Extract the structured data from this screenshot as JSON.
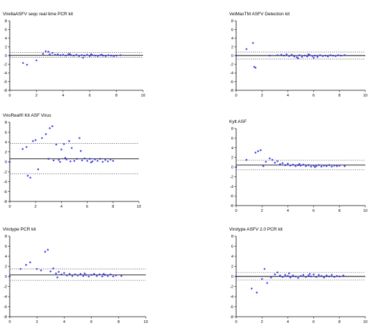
{
  "colors": {
    "points": "#2b2bea",
    "axis": "#000000",
    "mean_line": "#000000",
    "limit_line": "#555555"
  },
  "chart_data": [
    {
      "type": "scatter",
      "title": "VirellaASFV seqc real time PCR kit",
      "xlabel": "",
      "ylabel": "",
      "xlim": [
        0,
        10
      ],
      "ylim": [
        -8,
        8
      ],
      "xticks": [
        "0",
        "2",
        "4",
        "6",
        "8",
        "10"
      ],
      "yticks": [
        "-8",
        "-6",
        "-4",
        "-2",
        "0",
        "2",
        "4",
        "6",
        "8"
      ],
      "mean": 0.05,
      "upper_limit": 0.7,
      "lower_limit": -0.4,
      "series": [
        {
          "points": [
            [
              0,
              0
            ],
            [
              1.0,
              -1.7
            ],
            [
              1.3,
              -2.1
            ],
            [
              2.0,
              -1.1
            ],
            [
              2.5,
              0.4
            ],
            [
              2.7,
              1.0
            ],
            [
              2.9,
              0.9
            ],
            [
              3.0,
              0.3
            ],
            [
              3.2,
              0.6
            ],
            [
              3.4,
              0.2
            ],
            [
              3.6,
              0.3
            ],
            [
              3.8,
              0.1
            ],
            [
              4.0,
              0.2
            ],
            [
              4.2,
              0.0
            ],
            [
              4.4,
              0.3
            ],
            [
              4.6,
              0.1
            ],
            [
              4.8,
              0.0
            ],
            [
              5.0,
              0.2
            ],
            [
              5.2,
              -0.1
            ],
            [
              5.4,
              0.1
            ],
            [
              5.6,
              0.0
            ],
            [
              5.8,
              0.2
            ],
            [
              6.0,
              -0.1
            ],
            [
              6.2,
              0.1
            ],
            [
              6.4,
              0.0
            ],
            [
              6.6,
              -0.1
            ],
            [
              6.8,
              0.1
            ],
            [
              7.0,
              0.0
            ],
            [
              7.2,
              -0.1
            ],
            [
              7.4,
              0.1
            ],
            [
              7.6,
              0.0
            ],
            [
              7.8,
              -0.1
            ],
            [
              8.0,
              0.0
            ],
            [
              8.3,
              0.1
            ],
            [
              5.5,
              -0.5
            ],
            [
              6.1,
              0.3
            ],
            [
              6.9,
              0.2
            ],
            [
              4.5,
              0.4
            ]
          ]
        }
      ]
    },
    {
      "type": "scatter",
      "title": "VetMaxTM ASFV Detection kit",
      "xlabel": "",
      "ylabel": "",
      "xlim": [
        0,
        10
      ],
      "ylim": [
        -8,
        8
      ],
      "xticks": [
        "0",
        "2",
        "4",
        "6",
        "8",
        "10"
      ],
      "yticks": [
        "-8",
        "-6",
        "-4",
        "-2",
        "0",
        "2",
        "4",
        "6",
        "8"
      ],
      "mean": 0.0,
      "upper_limit": 0.8,
      "lower_limit": -0.8,
      "series": [
        {
          "points": [
            [
              0,
              0
            ],
            [
              0.8,
              1.5
            ],
            [
              1.3,
              2.9
            ],
            [
              1.4,
              -2.6
            ],
            [
              1.5,
              -2.8
            ],
            [
              2.6,
              0.0
            ],
            [
              3.2,
              0.1
            ],
            [
              3.5,
              0.2
            ],
            [
              3.7,
              0.0
            ],
            [
              3.9,
              0.3
            ],
            [
              4.1,
              -0.1
            ],
            [
              4.3,
              0.2
            ],
            [
              4.5,
              -0.2
            ],
            [
              4.7,
              -0.4
            ],
            [
              4.9,
              0.1
            ],
            [
              5.1,
              -0.3
            ],
            [
              5.3,
              0.0
            ],
            [
              5.5,
              -0.2
            ],
            [
              5.7,
              0.1
            ],
            [
              5.9,
              -0.1
            ],
            [
              6.1,
              0.0
            ],
            [
              6.3,
              -0.3
            ],
            [
              6.5,
              0.1
            ],
            [
              6.7,
              -0.1
            ],
            [
              6.9,
              0.0
            ],
            [
              7.1,
              -0.2
            ],
            [
              7.3,
              0.1
            ],
            [
              7.5,
              0.0
            ],
            [
              7.7,
              -0.1
            ],
            [
              7.9,
              0.1
            ],
            [
              8.1,
              0.0
            ],
            [
              8.4,
              0.1
            ],
            [
              4.8,
              -0.6
            ],
            [
              6.0,
              -0.5
            ],
            [
              5.6,
              0.3
            ]
          ]
        }
      ]
    },
    {
      "type": "scatter",
      "title": "ViroReal® Kit ASF Virus",
      "xlabel": "",
      "ylabel": "",
      "xlim": [
        0,
        10
      ],
      "ylim": [
        -8,
        8
      ],
      "xticks": [
        "0",
        "2",
        "4",
        "6",
        "8",
        "10"
      ],
      "yticks": [
        "-8",
        "-6",
        "-4",
        "-2",
        "0",
        "2",
        "4",
        "6",
        "8"
      ],
      "mean": 0.6,
      "upper_limit": 3.7,
      "lower_limit": -2.4,
      "series": [
        {
          "points": [
            [
              0,
              0
            ],
            [
              1.0,
              2.6
            ],
            [
              1.3,
              3.0
            ],
            [
              1.4,
              -2.8
            ],
            [
              1.6,
              -3.2
            ],
            [
              1.8,
              4.2
            ],
            [
              2.0,
              4.4
            ],
            [
              2.2,
              -1.5
            ],
            [
              2.5,
              4.8
            ],
            [
              2.8,
              5.6
            ],
            [
              3.1,
              6.8
            ],
            [
              3.3,
              7.2
            ],
            [
              3.0,
              0.6
            ],
            [
              3.4,
              0.3
            ],
            [
              3.6,
              3.5
            ],
            [
              3.8,
              0.4
            ],
            [
              4.0,
              2.5
            ],
            [
              4.2,
              3.6
            ],
            [
              4.4,
              0.5
            ],
            [
              4.6,
              4.2
            ],
            [
              4.8,
              2.8
            ],
            [
              5.0,
              0.2
            ],
            [
              5.2,
              0.6
            ],
            [
              5.4,
              4.8
            ],
            [
              5.6,
              0.3
            ],
            [
              5.8,
              0.7
            ],
            [
              6.0,
              0.2
            ],
            [
              6.2,
              0.6
            ],
            [
              6.4,
              0.1
            ],
            [
              6.6,
              0.5
            ],
            [
              6.8,
              0.2
            ],
            [
              7.0,
              0.6
            ],
            [
              7.2,
              0.0
            ],
            [
              7.4,
              0.4
            ],
            [
              7.6,
              0.1
            ],
            [
              7.8,
              0.5
            ],
            [
              8.0,
              0.2
            ],
            [
              3.9,
              0.0
            ],
            [
              4.7,
              0.1
            ],
            [
              5.5,
              2.2
            ],
            [
              6.3,
              -0.1
            ],
            [
              4.3,
              0.8
            ]
          ]
        }
      ]
    },
    {
      "type": "scatter",
      "title": "Kylt ASF",
      "xlabel": "",
      "ylabel": "",
      "xlim": [
        0,
        10
      ],
      "ylim": [
        -8,
        8
      ],
      "xticks": [
        "0",
        "2",
        "4",
        "6",
        "8",
        "10"
      ],
      "yticks": [
        "-8",
        "-6",
        "-4",
        "-2",
        "0",
        "2",
        "4",
        "6",
        "8"
      ],
      "mean": 0.4,
      "upper_limit": 1.4,
      "lower_limit": -0.6,
      "series": [
        {
          "points": [
            [
              0,
              0
            ],
            [
              0.8,
              1.5
            ],
            [
              1.5,
              3.0
            ],
            [
              1.7,
              3.3
            ],
            [
              1.9,
              3.5
            ],
            [
              2.3,
              1.1
            ],
            [
              2.6,
              1.8
            ],
            [
              2.8,
              1.5
            ],
            [
              3.0,
              0.9
            ],
            [
              3.2,
              1.2
            ],
            [
              3.4,
              0.6
            ],
            [
              3.6,
              0.8
            ],
            [
              3.8,
              0.4
            ],
            [
              4.0,
              0.7
            ],
            [
              4.2,
              0.3
            ],
            [
              4.4,
              0.5
            ],
            [
              4.6,
              0.2
            ],
            [
              4.8,
              0.4
            ],
            [
              5.0,
              0.3
            ],
            [
              5.2,
              0.5
            ],
            [
              5.4,
              0.2
            ],
            [
              5.6,
              0.4
            ],
            [
              5.8,
              0.1
            ],
            [
              6.0,
              0.3
            ],
            [
              6.2,
              0.2
            ],
            [
              6.4,
              0.4
            ],
            [
              6.6,
              0.1
            ],
            [
              6.8,
              0.3
            ],
            [
              7.0,
              0.2
            ],
            [
              7.2,
              0.4
            ],
            [
              7.4,
              0.1
            ],
            [
              7.6,
              0.3
            ],
            [
              7.8,
              0.2
            ],
            [
              8.0,
              0.3
            ],
            [
              8.4,
              0.2
            ],
            [
              2.1,
              0.2
            ],
            [
              4.9,
              0.6
            ],
            [
              6.1,
              0.0
            ]
          ]
        }
      ]
    },
    {
      "type": "scatter",
      "title": "Virotype PCR kit",
      "xlabel": "",
      "ylabel": "",
      "xlim": [
        0,
        10
      ],
      "ylim": [
        -8,
        8
      ],
      "xticks": [
        "0",
        "2",
        "4",
        "6",
        "8",
        "10"
      ],
      "yticks": [
        "-8",
        "-6",
        "-4",
        "-2",
        "0",
        "2",
        "4",
        "6",
        "8"
      ],
      "mean": 0.3,
      "upper_limit": 1.5,
      "lower_limit": -0.8,
      "series": [
        {
          "points": [
            [
              0,
              0
            ],
            [
              0.8,
              1.5
            ],
            [
              1.2,
              2.3
            ],
            [
              1.5,
              2.8
            ],
            [
              2.0,
              1.5
            ],
            [
              2.3,
              1.2
            ],
            [
              2.6,
              4.9
            ],
            [
              2.8,
              5.3
            ],
            [
              3.0,
              1.0
            ],
            [
              3.2,
              1.6
            ],
            [
              3.4,
              0.6
            ],
            [
              3.6,
              0.9
            ],
            [
              3.8,
              0.4
            ],
            [
              4.0,
              0.7
            ],
            [
              4.2,
              0.2
            ],
            [
              4.4,
              0.5
            ],
            [
              4.6,
              0.1
            ],
            [
              4.8,
              0.4
            ],
            [
              5.0,
              0.2
            ],
            [
              5.2,
              0.5
            ],
            [
              5.4,
              0.1
            ],
            [
              5.6,
              0.3
            ],
            [
              5.8,
              0.0
            ],
            [
              6.0,
              0.3
            ],
            [
              6.2,
              0.5
            ],
            [
              6.4,
              0.1
            ],
            [
              6.6,
              0.4
            ],
            [
              6.8,
              0.0
            ],
            [
              7.0,
              0.3
            ],
            [
              7.2,
              0.1
            ],
            [
              7.4,
              0.4
            ],
            [
              7.6,
              0.0
            ],
            [
              7.8,
              0.2
            ],
            [
              8.2,
              0.1
            ],
            [
              3.5,
              -0.2
            ],
            [
              5.5,
              0.6
            ],
            [
              6.9,
              0.5
            ]
          ]
        }
      ]
    },
    {
      "type": "scatter",
      "title": "Virotype ASFV 2.0 PCR kit",
      "xlabel": "",
      "ylabel": "",
      "xlim": [
        0,
        10
      ],
      "ylim": [
        -8,
        8
      ],
      "xticks": [
        "0",
        "2",
        "4",
        "6",
        "8",
        "10"
      ],
      "yticks": [
        "-8",
        "-6",
        "-4",
        "-2",
        "0",
        "2",
        "4",
        "6",
        "8"
      ],
      "mean": 0.0,
      "upper_limit": 0.8,
      "lower_limit": -0.7,
      "series": [
        {
          "points": [
            [
              0,
              0
            ],
            [
              1.2,
              -2.4
            ],
            [
              1.6,
              -3.2
            ],
            [
              2.0,
              -0.5
            ],
            [
              2.2,
              1.5
            ],
            [
              2.4,
              -1.3
            ],
            [
              2.7,
              -0.2
            ],
            [
              3.0,
              0.4
            ],
            [
              3.2,
              0.8
            ],
            [
              3.4,
              0.2
            ],
            [
              3.6,
              -0.1
            ],
            [
              3.8,
              0.3
            ],
            [
              4.0,
              0.1
            ],
            [
              4.2,
              -0.2
            ],
            [
              4.4,
              0.2
            ],
            [
              4.6,
              0.0
            ],
            [
              4.8,
              -0.3
            ],
            [
              5.0,
              0.1
            ],
            [
              5.2,
              0.3
            ],
            [
              5.4,
              -0.1
            ],
            [
              5.6,
              0.2
            ],
            [
              5.8,
              0.0
            ],
            [
              6.0,
              0.4
            ],
            [
              6.2,
              -0.1
            ],
            [
              6.4,
              0.3
            ],
            [
              6.6,
              0.1
            ],
            [
              6.8,
              -0.2
            ],
            [
              7.0,
              0.2
            ],
            [
              7.2,
              0.0
            ],
            [
              7.4,
              0.3
            ],
            [
              7.6,
              -0.1
            ],
            [
              7.8,
              0.1
            ],
            [
              8.0,
              0.0
            ],
            [
              8.3,
              0.2
            ],
            [
              4.1,
              0.6
            ],
            [
              5.7,
              0.5
            ]
          ]
        }
      ]
    }
  ]
}
